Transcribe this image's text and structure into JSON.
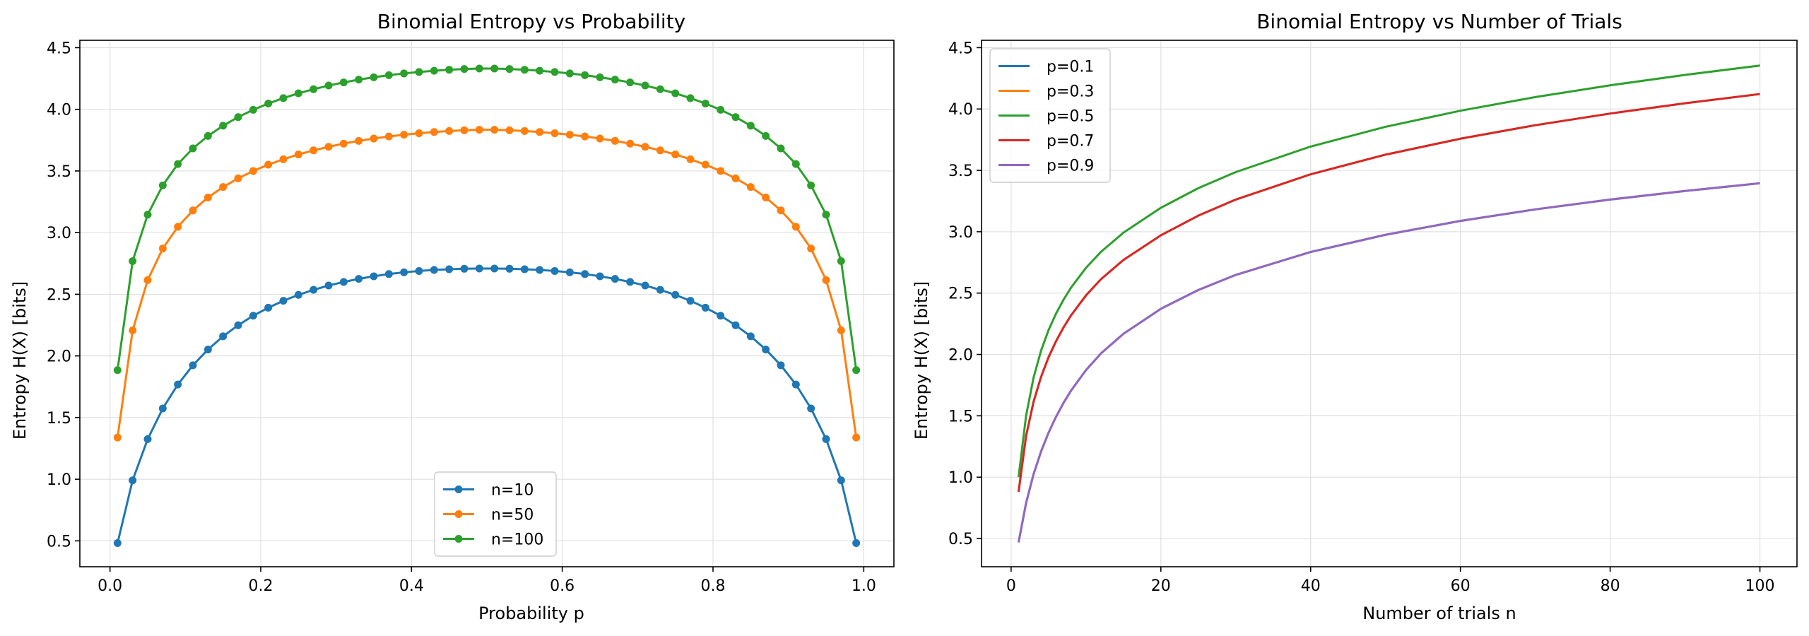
{
  "figure": {
    "background": "#ffffff",
    "grid_color": "#e0e0e0"
  },
  "chart_data": [
    {
      "type": "line",
      "title": "Binomial Entropy vs Probability",
      "xlabel": "Probability p",
      "ylabel": "Entropy H(X) [bits]",
      "xlim": [
        -0.04,
        1.04
      ],
      "ylim": [
        0.29,
        4.56
      ],
      "xticks": [
        0.0,
        0.2,
        0.4,
        0.6,
        0.8,
        1.0
      ],
      "xtick_labels": [
        "0.0",
        "0.2",
        "0.4",
        "0.6",
        "0.8",
        "1.0"
      ],
      "yticks": [
        0.5,
        1.0,
        1.5,
        2.0,
        2.5,
        3.0,
        3.5,
        4.0,
        4.5
      ],
      "ytick_labels": [
        "0.5",
        "1.0",
        "1.5",
        "2.0",
        "2.5",
        "3.0",
        "3.5",
        "4.0",
        "4.5"
      ],
      "grid": true,
      "legend_position": "bottom-center",
      "markers": true,
      "x": [
        0.01,
        0.03,
        0.05,
        0.07,
        0.09,
        0.11,
        0.13,
        0.15,
        0.17,
        0.19,
        0.21,
        0.23,
        0.25,
        0.27,
        0.29,
        0.31,
        0.33,
        0.35,
        0.37,
        0.39,
        0.41,
        0.43,
        0.45,
        0.47,
        0.49,
        0.51,
        0.53,
        0.55,
        0.57,
        0.59,
        0.61,
        0.63,
        0.65,
        0.67,
        0.69,
        0.71,
        0.73,
        0.75,
        0.77,
        0.79,
        0.81,
        0.83,
        0.85,
        0.87,
        0.89,
        0.91,
        0.93,
        0.95,
        0.97,
        0.99
      ],
      "series": [
        {
          "name": "n=10",
          "color": "#1f77b4",
          "values": [
            0.482,
            0.991,
            1.325,
            1.574,
            1.768,
            1.924,
            2.052,
            2.159,
            2.249,
            2.326,
            2.391,
            2.447,
            2.495,
            2.536,
            2.571,
            2.6,
            2.625,
            2.646,
            2.664,
            2.678,
            2.689,
            2.697,
            2.703,
            2.707,
            2.709,
            2.709,
            2.707,
            2.703,
            2.697,
            2.689,
            2.678,
            2.664,
            2.646,
            2.625,
            2.6,
            2.571,
            2.536,
            2.495,
            2.447,
            2.391,
            2.326,
            2.249,
            2.159,
            2.052,
            1.924,
            1.768,
            1.574,
            1.325,
            0.991,
            0.482
          ]
        },
        {
          "name": "n=50",
          "color": "#ff7f0e",
          "values": [
            1.338,
            2.207,
            2.615,
            2.871,
            3.047,
            3.18,
            3.285,
            3.37,
            3.44,
            3.5,
            3.551,
            3.595,
            3.634,
            3.667,
            3.696,
            3.722,
            3.744,
            3.763,
            3.78,
            3.794,
            3.806,
            3.816,
            3.824,
            3.83,
            3.834,
            3.834,
            3.83,
            3.824,
            3.816,
            3.806,
            3.794,
            3.78,
            3.763,
            3.744,
            3.722,
            3.696,
            3.667,
            3.634,
            3.595,
            3.551,
            3.5,
            3.44,
            3.37,
            3.285,
            3.18,
            3.047,
            2.871,
            2.615,
            2.207,
            1.338
          ]
        },
        {
          "name": "n=100",
          "color": "#2ca02c",
          "values": [
            1.885,
            2.769,
            3.146,
            3.383,
            3.556,
            3.683,
            3.784,
            3.867,
            3.937,
            3.996,
            4.047,
            4.091,
            4.13,
            4.163,
            4.193,
            4.218,
            4.241,
            4.26,
            4.277,
            4.291,
            4.303,
            4.313,
            4.321,
            4.327,
            4.331,
            4.331,
            4.327,
            4.321,
            4.313,
            4.303,
            4.291,
            4.277,
            4.26,
            4.241,
            4.218,
            4.193,
            4.163,
            4.13,
            4.091,
            4.047,
            3.996,
            3.937,
            3.867,
            3.784,
            3.683,
            3.556,
            3.383,
            3.146,
            2.769,
            1.885
          ]
        }
      ]
    },
    {
      "type": "line",
      "title": "Binomial Entropy vs Number of Trials",
      "xlabel": "Number of trials n",
      "ylabel": "Entropy H(X) [bits]",
      "xlim": [
        -3.95,
        104.95
      ],
      "ylim": [
        0.27,
        4.56
      ],
      "xticks": [
        0,
        20,
        40,
        60,
        80,
        100
      ],
      "xtick_labels": [
        "0",
        "20",
        "40",
        "60",
        "80",
        "100"
      ],
      "yticks": [
        0.5,
        1.0,
        1.5,
        2.0,
        2.5,
        3.0,
        3.5,
        4.0,
        4.5
      ],
      "ytick_labels": [
        "0.5",
        "1.0",
        "1.5",
        "2.0",
        "2.5",
        "3.0",
        "3.5",
        "4.0",
        "4.5"
      ],
      "grid": true,
      "legend_position": "top-left",
      "markers": false,
      "x": [
        1,
        2,
        3,
        4,
        5,
        6,
        7,
        8,
        10,
        12,
        15,
        20,
        25,
        30,
        40,
        50,
        60,
        70,
        80,
        90,
        100
      ],
      "series": [
        {
          "name": "p=0.1",
          "color": "#1f77b4",
          "values": [
            0.469,
            0.789,
            1.024,
            1.209,
            1.362,
            1.492,
            1.605,
            1.705,
            1.872,
            2.008,
            2.168,
            2.372,
            2.525,
            2.648,
            2.835,
            2.975,
            3.088,
            3.182,
            3.262,
            3.332,
            3.395
          ]
        },
        {
          "name": "p=0.3",
          "color": "#ff7f0e",
          "values": [
            0.881,
            1.335,
            1.615,
            1.817,
            1.977,
            2.108,
            2.22,
            2.318,
            2.481,
            2.613,
            2.77,
            2.971,
            3.131,
            3.262,
            3.468,
            3.628,
            3.758,
            3.868,
            3.963,
            4.047,
            4.122
          ]
        },
        {
          "name": "p=0.5",
          "color": "#2ca02c",
          "values": [
            1.0,
            1.5,
            1.811,
            2.031,
            2.198,
            2.333,
            2.446,
            2.544,
            2.706,
            2.836,
            2.992,
            3.195,
            3.355,
            3.486,
            3.694,
            3.855,
            3.986,
            4.097,
            4.193,
            4.278,
            4.354
          ]
        },
        {
          "name": "p=0.7",
          "color": "#d62728",
          "values": [
            0.881,
            1.335,
            1.615,
            1.817,
            1.977,
            2.108,
            2.22,
            2.318,
            2.481,
            2.613,
            2.77,
            2.971,
            3.131,
            3.262,
            3.468,
            3.628,
            3.758,
            3.868,
            3.963,
            4.047,
            4.122
          ]
        },
        {
          "name": "p=0.9",
          "color": "#9467bd",
          "values": [
            0.469,
            0.789,
            1.024,
            1.209,
            1.362,
            1.492,
            1.605,
            1.705,
            1.872,
            2.008,
            2.168,
            2.372,
            2.525,
            2.648,
            2.835,
            2.975,
            3.088,
            3.182,
            3.262,
            3.332,
            3.395
          ]
        }
      ]
    }
  ]
}
